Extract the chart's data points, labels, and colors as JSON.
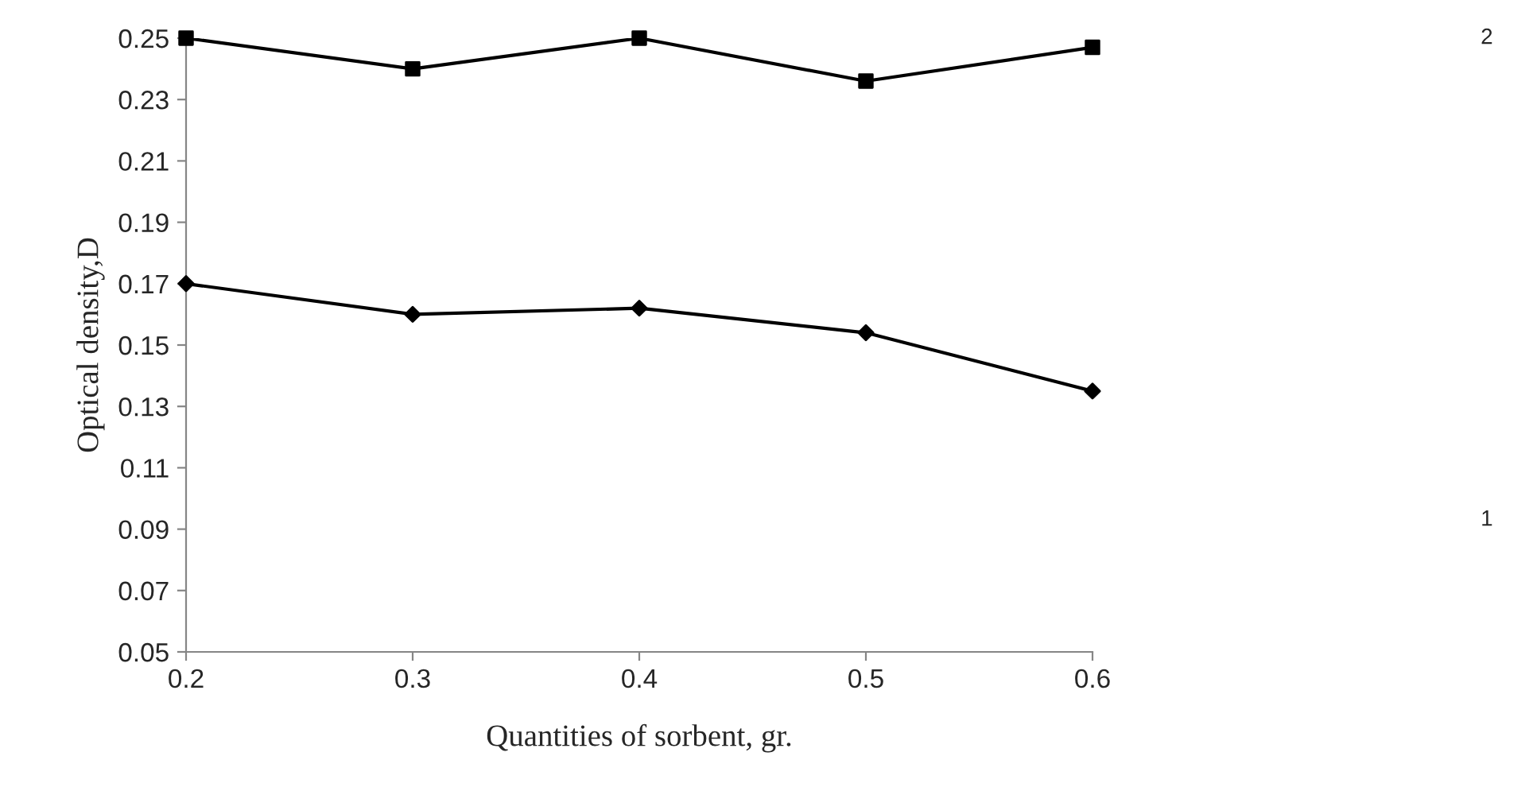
{
  "chart_data": {
    "type": "line",
    "xlabel": "Quantities of sorbent, gr.",
    "ylabel": "Optical density,D",
    "x": [
      0.2,
      0.3,
      0.4,
      0.5,
      0.6
    ],
    "series": [
      {
        "color": "#000000",
        "marker": "square",
        "values": [
          0.25,
          0.24,
          0.25,
          0.236,
          0.247
        ]
      },
      {
        "color": "#000000",
        "marker": "diamond",
        "values": [
          0.17,
          0.16,
          0.162,
          0.154,
          0.135
        ]
      }
    ],
    "annotations": [
      "2",
      "1"
    ],
    "xlim": [
      0.2,
      0.6
    ],
    "xticks": [
      0.2,
      0.3,
      0.4,
      0.5,
      0.6
    ],
    "ylim": [
      0.05,
      0.25
    ],
    "yticks": [
      0.05,
      0.07,
      0.09,
      0.11,
      0.13,
      0.15,
      0.17,
      0.19,
      0.21,
      0.23,
      0.25
    ],
    "grid": false,
    "legend": false
  }
}
